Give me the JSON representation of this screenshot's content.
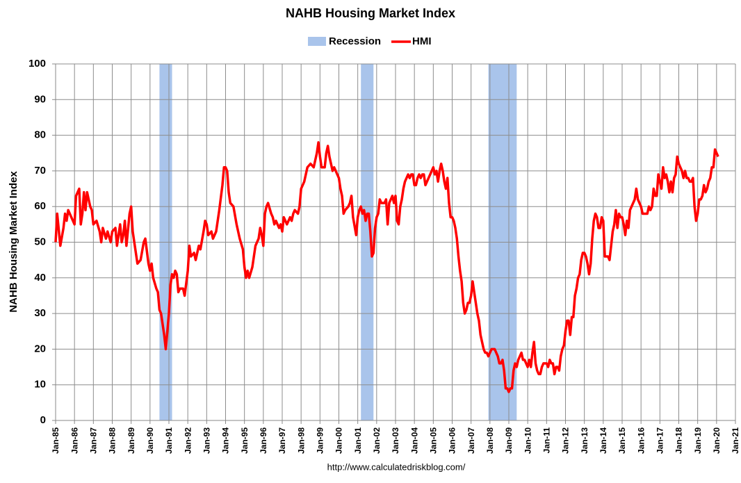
{
  "chart_data": {
    "type": "line",
    "title": "NAHB Housing Market Index",
    "ylabel": "NAHB Housing Market Index",
    "source": "http://www.calculatedriskblog.com/",
    "ylim": [
      0,
      100
    ],
    "yticks": [
      0,
      10,
      20,
      30,
      40,
      50,
      60,
      70,
      80,
      90,
      100
    ],
    "xlim": [
      "1985-01",
      "2021-01"
    ],
    "xticks": [
      {
        "value": "1985-01",
        "label": "Jan-85"
      },
      {
        "value": "1986-01",
        "label": "Jan-86"
      },
      {
        "value": "1987-01",
        "label": "Jan-87"
      },
      {
        "value": "1988-01",
        "label": "Jan-88"
      },
      {
        "value": "1989-01",
        "label": "Jan-89"
      },
      {
        "value": "1990-01",
        "label": "Jan-90"
      },
      {
        "value": "1991-01",
        "label": "Jan-91"
      },
      {
        "value": "1992-01",
        "label": "Jan-92"
      },
      {
        "value": "1993-01",
        "label": "Jan-93"
      },
      {
        "value": "1994-01",
        "label": "Jan-94"
      },
      {
        "value": "1995-01",
        "label": "Jan-95"
      },
      {
        "value": "1996-01",
        "label": "Jan-96"
      },
      {
        "value": "1997-01",
        "label": "Jan-97"
      },
      {
        "value": "1998-01",
        "label": "Jan-98"
      },
      {
        "value": "1999-01",
        "label": "Jan-99"
      },
      {
        "value": "2000-01",
        "label": "Jan-00"
      },
      {
        "value": "2001-01",
        "label": "Jan-01"
      },
      {
        "value": "2002-01",
        "label": "Jan-02"
      },
      {
        "value": "2003-01",
        "label": "Jan-03"
      },
      {
        "value": "2004-01",
        "label": "Jan-04"
      },
      {
        "value": "2005-01",
        "label": "Jan-05"
      },
      {
        "value": "2006-01",
        "label": "Jan-06"
      },
      {
        "value": "2007-01",
        "label": "Jan-07"
      },
      {
        "value": "2008-01",
        "label": "Jan-08"
      },
      {
        "value": "2009-01",
        "label": "Jan-09"
      },
      {
        "value": "2010-01",
        "label": "Jan-10"
      },
      {
        "value": "2011-01",
        "label": "Jan-11"
      },
      {
        "value": "2012-01",
        "label": "Jan-12"
      },
      {
        "value": "2013-01",
        "label": "Jan-13"
      },
      {
        "value": "2014-01",
        "label": "Jan-14"
      },
      {
        "value": "2015-01",
        "label": "Jan-15"
      },
      {
        "value": "2016-01",
        "label": "Jan-16"
      },
      {
        "value": "2017-01",
        "label": "Jan-17"
      },
      {
        "value": "2018-01",
        "label": "Jan-18"
      },
      {
        "value": "2019-01",
        "label": "Jan-19"
      },
      {
        "value": "2020-01",
        "label": "Jan-20"
      },
      {
        "value": "2021-01",
        "label": "Jan-21"
      }
    ],
    "grid": true,
    "recession": {
      "name": "Recession",
      "color": "#a9c4eb",
      "periods": [
        {
          "start": "1990-07",
          "end": "1991-03"
        },
        {
          "start": "2001-03",
          "end": "2001-11"
        },
        {
          "start": "2007-12",
          "end": "2009-06"
        }
      ]
    },
    "series": [
      {
        "name": "HMI",
        "color": "#ff0000",
        "x": [
          "1985-01",
          "1985-02",
          "1985-04",
          "1985-06",
          "1985-07",
          "1985-08",
          "1985-09",
          "1985-12",
          "1986-01",
          "1986-02",
          "1986-04",
          "1986-05",
          "1986-06",
          "1986-07",
          "1986-08",
          "1986-09",
          "1986-11",
          "1986-12",
          "1987-01",
          "1987-03",
          "1987-05",
          "1987-06",
          "1987-07",
          "1987-09",
          "1987-10",
          "1987-12",
          "1988-01",
          "1988-03",
          "1988-04",
          "1988-06",
          "1988-07",
          "1988-08",
          "1988-09",
          "1988-10",
          "1988-12",
          "1989-01",
          "1989-02",
          "1989-03",
          "1989-05",
          "1989-07",
          "1989-09",
          "1989-10",
          "1989-12",
          "1990-01",
          "1990-02",
          "1990-03",
          "1990-05",
          "1990-06",
          "1990-07",
          "1990-08",
          "1990-09",
          "1990-10",
          "1990-11",
          "1991-01",
          "1991-02",
          "1991-03",
          "1991-04",
          "1991-05",
          "1991-06",
          "1991-07",
          "1991-08",
          "1991-10",
          "1991-11",
          "1992-01",
          "1992-02",
          "1992-03",
          "1992-05",
          "1992-06",
          "1992-08",
          "1992-09",
          "1992-11",
          "1992-12",
          "1993-01",
          "1993-02",
          "1993-04",
          "1993-05",
          "1993-07",
          "1993-09",
          "1993-11",
          "1993-12",
          "1994-01",
          "1994-02",
          "1994-03",
          "1994-04",
          "1994-06",
          "1994-08",
          "1994-09",
          "1994-10",
          "1994-12",
          "1995-01",
          "1995-02",
          "1995-03",
          "1995-04",
          "1995-06",
          "1995-08",
          "1995-10",
          "1995-11",
          "1995-12",
          "1996-01",
          "1996-02",
          "1996-03",
          "1996-04",
          "1996-06",
          "1996-07",
          "1996-08",
          "1996-09",
          "1996-11",
          "1996-12",
          "1997-01",
          "1997-02",
          "1997-04",
          "1997-06",
          "1997-07",
          "1997-08",
          "1997-09",
          "1997-11",
          "1997-12",
          "1998-01",
          "1998-03",
          "1998-05",
          "1998-07",
          "1998-09",
          "1998-11",
          "1998-12",
          "1999-01",
          "1999-02",
          "1999-04",
          "1999-05",
          "1999-06",
          "1999-07",
          "1999-08",
          "1999-09",
          "1999-10",
          "1999-12",
          "2000-01",
          "2000-02",
          "2000-03",
          "2000-04",
          "2000-05",
          "2000-07",
          "2000-08",
          "2000-09",
          "2000-10",
          "2000-12",
          "2001-01",
          "2001-02",
          "2001-03",
          "2001-04",
          "2001-05",
          "2001-06",
          "2001-07",
          "2001-08",
          "2001-09",
          "2001-10",
          "2001-11",
          "2001-12",
          "2002-01",
          "2002-02",
          "2002-03",
          "2002-04",
          "2002-05",
          "2002-06",
          "2002-07",
          "2002-08",
          "2002-09",
          "2002-10",
          "2002-11",
          "2002-12",
          "2003-01",
          "2003-02",
          "2003-03",
          "2003-04",
          "2003-05",
          "2003-06",
          "2003-07",
          "2003-08",
          "2003-09",
          "2003-10",
          "2003-11",
          "2003-12",
          "2004-01",
          "2004-02",
          "2004-03",
          "2004-04",
          "2004-05",
          "2004-06",
          "2004-07",
          "2004-08",
          "2004-09",
          "2004-10",
          "2004-11",
          "2004-12",
          "2005-01",
          "2005-02",
          "2005-03",
          "2005-04",
          "2005-05",
          "2005-06",
          "2005-07",
          "2005-08",
          "2005-09",
          "2005-10",
          "2005-11",
          "2005-12",
          "2006-01",
          "2006-02",
          "2006-03",
          "2006-04",
          "2006-05",
          "2006-06",
          "2006-07",
          "2006-08",
          "2006-09",
          "2006-10",
          "2006-11",
          "2006-12",
          "2007-01",
          "2007-02",
          "2007-03",
          "2007-04",
          "2007-05",
          "2007-06",
          "2007-07",
          "2007-08",
          "2007-09",
          "2007-10",
          "2007-11",
          "2007-12",
          "2008-01",
          "2008-02",
          "2008-03",
          "2008-04",
          "2008-05",
          "2008-06",
          "2008-07",
          "2008-08",
          "2008-09",
          "2008-10",
          "2008-11",
          "2008-12",
          "2009-01",
          "2009-02",
          "2009-03",
          "2009-04",
          "2009-05",
          "2009-06",
          "2009-07",
          "2009-08",
          "2009-09",
          "2009-10",
          "2009-11",
          "2009-12",
          "2010-01",
          "2010-02",
          "2010-03",
          "2010-04",
          "2010-05",
          "2010-06",
          "2010-07",
          "2010-08",
          "2010-09",
          "2010-10",
          "2010-11",
          "2010-12",
          "2011-01",
          "2011-02",
          "2011-03",
          "2011-04",
          "2011-05",
          "2011-06",
          "2011-07",
          "2011-08",
          "2011-09",
          "2011-10",
          "2011-11",
          "2011-12",
          "2012-01",
          "2012-02",
          "2012-03",
          "2012-04",
          "2012-05",
          "2012-06",
          "2012-07",
          "2012-08",
          "2012-09",
          "2012-10",
          "2012-11",
          "2012-12",
          "2013-01",
          "2013-02",
          "2013-03",
          "2013-04",
          "2013-05",
          "2013-06",
          "2013-07",
          "2013-08",
          "2013-09",
          "2013-10",
          "2013-11",
          "2013-12",
          "2014-01",
          "2014-02",
          "2014-03",
          "2014-04",
          "2014-05",
          "2014-06",
          "2014-07",
          "2014-08",
          "2014-09",
          "2014-10",
          "2014-11",
          "2014-12",
          "2015-01",
          "2015-02",
          "2015-03",
          "2015-04",
          "2015-05",
          "2015-06",
          "2015-07",
          "2015-08",
          "2015-09",
          "2015-10",
          "2015-11",
          "2015-12",
          "2016-01",
          "2016-02",
          "2016-03",
          "2016-04",
          "2016-05",
          "2016-06",
          "2016-07",
          "2016-08",
          "2016-09",
          "2016-10",
          "2016-11",
          "2016-12",
          "2017-01",
          "2017-02",
          "2017-03",
          "2017-04",
          "2017-05",
          "2017-06",
          "2017-07",
          "2017-08",
          "2017-09",
          "2017-10",
          "2017-11",
          "2017-12",
          "2018-01",
          "2018-02",
          "2018-03",
          "2018-04",
          "2018-05",
          "2018-06",
          "2018-07",
          "2018-08",
          "2018-09",
          "2018-10",
          "2018-11",
          "2018-12",
          "2019-01",
          "2019-02",
          "2019-03",
          "2019-04",
          "2019-05",
          "2019-06",
          "2019-07",
          "2019-08",
          "2019-09",
          "2019-10",
          "2019-11",
          "2019-12",
          "2020-01",
          "2020-02"
        ],
        "values": [
          50,
          58,
          49,
          54,
          58,
          56,
          59,
          56,
          55,
          63,
          65,
          55,
          58,
          64,
          59,
          64,
          60,
          59,
          55,
          56,
          53,
          50,
          54,
          51,
          53,
          50,
          53,
          54,
          49,
          55,
          50,
          52,
          56,
          49,
          58,
          60,
          53,
          50,
          44,
          45,
          50,
          51,
          44,
          42,
          44,
          40,
          37,
          36,
          31,
          30,
          27,
          24,
          20,
          30,
          38,
          41,
          40,
          42,
          41,
          36,
          37,
          37,
          35,
          42,
          49,
          46,
          47,
          45,
          49,
          48,
          53,
          56,
          55,
          52,
          53,
          51,
          53,
          59,
          66,
          71,
          71,
          70,
          64,
          61,
          60,
          55,
          53,
          51,
          48,
          43,
          40,
          42,
          40,
          43,
          49,
          51,
          54,
          52,
          49,
          58,
          60,
          61,
          58,
          57,
          55,
          56,
          54,
          55,
          53,
          57,
          55,
          57,
          56,
          58,
          59,
          58,
          60,
          65,
          67,
          71,
          72,
          71,
          75,
          78,
          74,
          71,
          71,
          75,
          77,
          74,
          72,
          70,
          71,
          69,
          68,
          65,
          63,
          58,
          59,
          60,
          61,
          63,
          57,
          52,
          57,
          59,
          60,
          58,
          59,
          56,
          58,
          58,
          53,
          46,
          47,
          54,
          57,
          58,
          62,
          61,
          61,
          61,
          62,
          55,
          61,
          62,
          63,
          61,
          63,
          56,
          55,
          60,
          62,
          65,
          67,
          68,
          69,
          68,
          69,
          69,
          66,
          66,
          68,
          69,
          68,
          69,
          69,
          66,
          67,
          68,
          69,
          70,
          71,
          69,
          70,
          67,
          70,
          72,
          70,
          67,
          65,
          68,
          61,
          57,
          57,
          56,
          54,
          51,
          46,
          42,
          39,
          33,
          30,
          31,
          33,
          33,
          35,
          39,
          36,
          33,
          30,
          28,
          24,
          22,
          20,
          19,
          19,
          18,
          19,
          20,
          20,
          20,
          19,
          18,
          16,
          16,
          17,
          14,
          9,
          9,
          8,
          9,
          9,
          14,
          16,
          15,
          17,
          18,
          19,
          17,
          17,
          16,
          15,
          17,
          15,
          19,
          22,
          16,
          14,
          13,
          13,
          15,
          16,
          16,
          16,
          15,
          17,
          16,
          16,
          13,
          15,
          15,
          14,
          18,
          20,
          21,
          25,
          28,
          28,
          24,
          29,
          29,
          35,
          37,
          40,
          41,
          45,
          47,
          47,
          46,
          44,
          41,
          44,
          51,
          56,
          58,
          57,
          54,
          54,
          57,
          56,
          46,
          46,
          46,
          45,
          49,
          53,
          55,
          59,
          54,
          58,
          57,
          57,
          55,
          52,
          56,
          54,
          59,
          60,
          61,
          62,
          65,
          62,
          61,
          60,
          58,
          58,
          58,
          58,
          60,
          59,
          60,
          65,
          63,
          63,
          69,
          67,
          65,
          71,
          68,
          69,
          67,
          64,
          67,
          64,
          68,
          69,
          74,
          72,
          71,
          70,
          68,
          70,
          68,
          68,
          67,
          67,
          68,
          60,
          56,
          58,
          62,
          62,
          63,
          66,
          64,
          65,
          67,
          68,
          71,
          71,
          76,
          75,
          74
        ]
      }
    ]
  }
}
